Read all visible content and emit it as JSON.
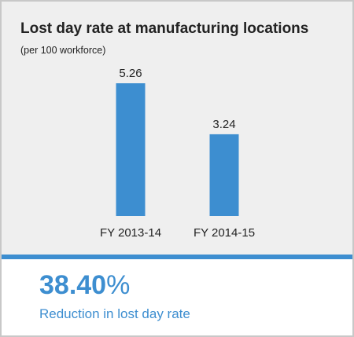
{
  "chart_data": {
    "type": "bar",
    "title": "Lost day rate at manufacturing locations",
    "subtitle": "(per 100 workforce)",
    "categories": [
      "FY 2013-14",
      "FY 2014-15"
    ],
    "values": [
      5.26,
      3.24
    ],
    "value_labels": [
      "5.26",
      "3.24"
    ],
    "ylim": [
      0,
      5.26
    ],
    "grid": false,
    "bar_color": "#3d8ed0"
  },
  "summary": {
    "value": "38.40",
    "unit": "%",
    "label": "Reduction in lost day rate"
  }
}
